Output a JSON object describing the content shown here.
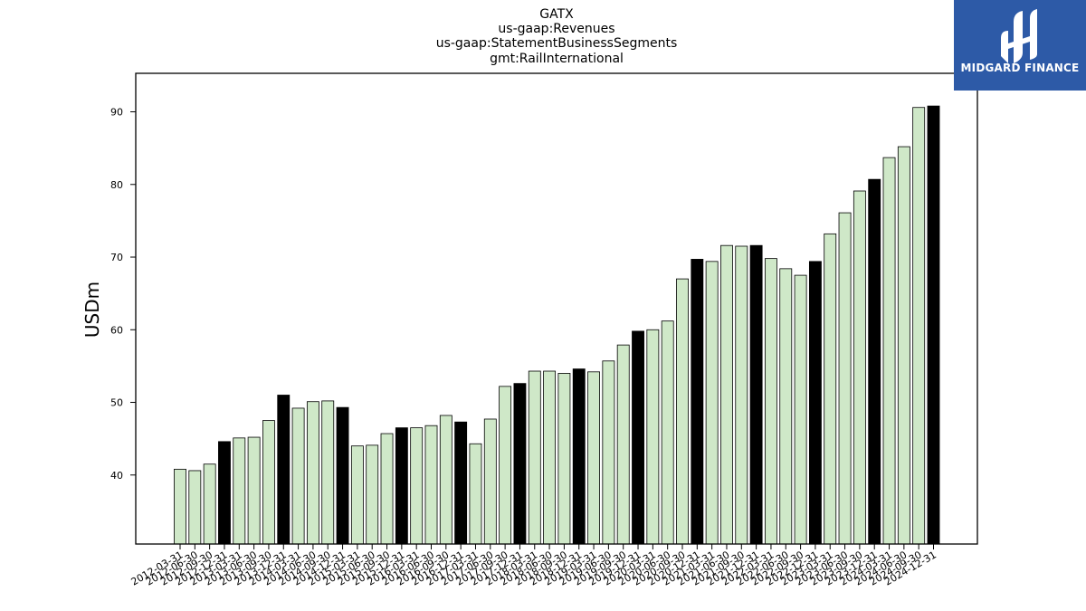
{
  "chart_data": {
    "type": "bar",
    "title_lines": [
      "GATX",
      "us-gaap:Revenues",
      "us-gaap:StatementBusinessSegments",
      "gmt:RailInternational"
    ],
    "ylabel": "USDm",
    "xlabel": "",
    "ylim": [
      30.5,
      95.3
    ],
    "yticks": [
      40,
      50,
      60,
      70,
      80,
      90
    ],
    "grid": false,
    "categories": [
      "2012-03-31",
      "2012-06-30",
      "2012-09-30",
      "2012-12-31",
      "2013-03-31",
      "2013-06-30",
      "2013-09-30",
      "2013-12-31",
      "2014-03-31",
      "2014-06-30",
      "2014-09-30",
      "2014-12-31",
      "2015-03-31",
      "2015-06-30",
      "2015-09-30",
      "2015-12-31",
      "2016-03-31",
      "2016-06-30",
      "2016-09-30",
      "2016-12-31",
      "2017-03-31",
      "2017-06-30",
      "2017-09-30",
      "2017-12-31",
      "2018-03-31",
      "2018-06-30",
      "2018-09-30",
      "2018-12-31",
      "2019-03-31",
      "2019-06-30",
      "2019-09-30",
      "2019-12-31",
      "2020-03-31",
      "2020-06-30",
      "2020-09-30",
      "2020-12-31",
      "2021-03-31",
      "2021-06-30",
      "2021-09-30",
      "2021-12-31",
      "2022-03-31",
      "2022-06-30",
      "2022-09-30",
      "2022-12-31",
      "2023-03-31",
      "2023-06-30",
      "2023-09-30",
      "2023-12-31",
      "2024-03-31",
      "2024-06-30",
      "2024-09-30",
      "2024-12-31"
    ],
    "values": [
      40.8,
      40.6,
      41.5,
      44.6,
      45.1,
      45.2,
      47.5,
      51.0,
      49.2,
      50.1,
      50.2,
      49.3,
      44.0,
      44.1,
      45.7,
      46.5,
      46.5,
      46.8,
      48.2,
      47.3,
      44.3,
      47.7,
      52.2,
      52.6,
      54.3,
      54.3,
      54.0,
      54.6,
      54.2,
      55.7,
      57.9,
      59.8,
      60.0,
      61.2,
      67.0,
      69.7,
      69.4,
      71.6,
      71.5,
      71.6,
      69.8,
      68.4,
      67.5,
      69.4,
      73.2,
      76.1,
      79.1,
      80.7,
      83.7,
      85.2,
      90.6,
      90.8
    ],
    "colors": {
      "quarter": "#cfe8c8",
      "year_end": "#000000",
      "edge": "#000000"
    }
  },
  "logo": {
    "text": "MIDGARD FINANCE",
    "background": "#2d5aa7",
    "foreground": "#ffffff"
  }
}
